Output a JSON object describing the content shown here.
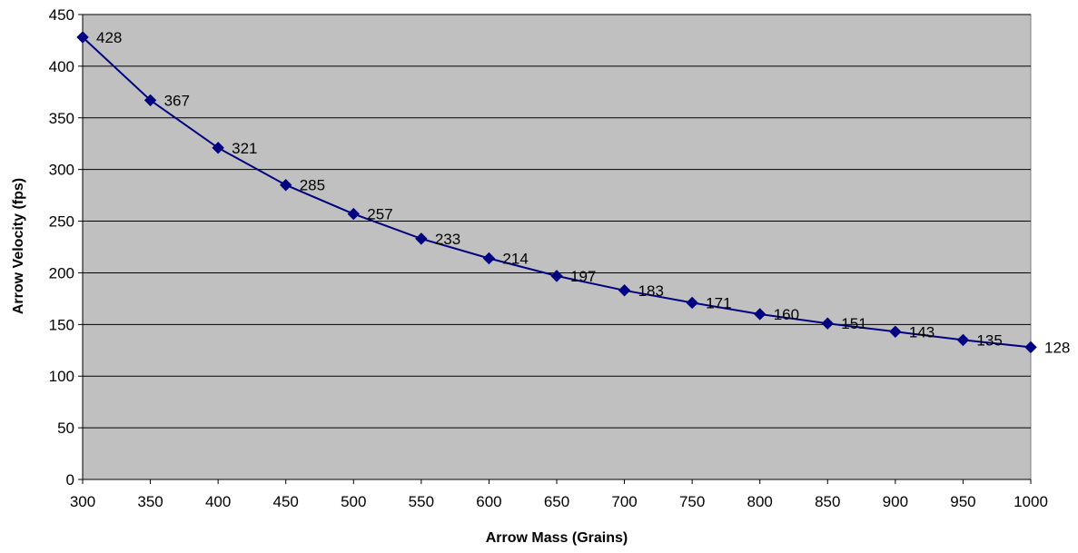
{
  "chart_data": {
    "type": "line",
    "title": "",
    "xlabel": "Arrow Mass (Grains)",
    "ylabel": "Arrow Velocity (fps)",
    "x": [
      300,
      350,
      400,
      450,
      500,
      550,
      600,
      650,
      700,
      750,
      800,
      850,
      900,
      950,
      1000
    ],
    "xticks": [
      "300",
      "350",
      "400",
      "450",
      "500",
      "550",
      "600",
      "650",
      "700",
      "750",
      "800",
      "850",
      "900",
      "950",
      "1000"
    ],
    "yticks": [
      "0",
      "50",
      "100",
      "150",
      "200",
      "250",
      "300",
      "350",
      "400",
      "450"
    ],
    "xlim": [
      300,
      1000
    ],
    "ylim": [
      0,
      450
    ],
    "grid": "horizontal",
    "legend": "none",
    "series": [
      {
        "values": [
          428,
          367,
          321,
          285,
          257,
          233,
          214,
          197,
          183,
          171,
          160,
          151,
          143,
          135,
          128
        ],
        "labels": [
          "428",
          "367",
          "321",
          "285",
          "257",
          "233",
          "214",
          "197",
          "183",
          "171",
          "160",
          "151",
          "143",
          "135",
          "128"
        ],
        "color": "#000080",
        "marker": "diamond"
      }
    ],
    "colors": {
      "plot_background": "#c0c0c0",
      "gridline": "#000000",
      "axis": "#808080"
    }
  }
}
